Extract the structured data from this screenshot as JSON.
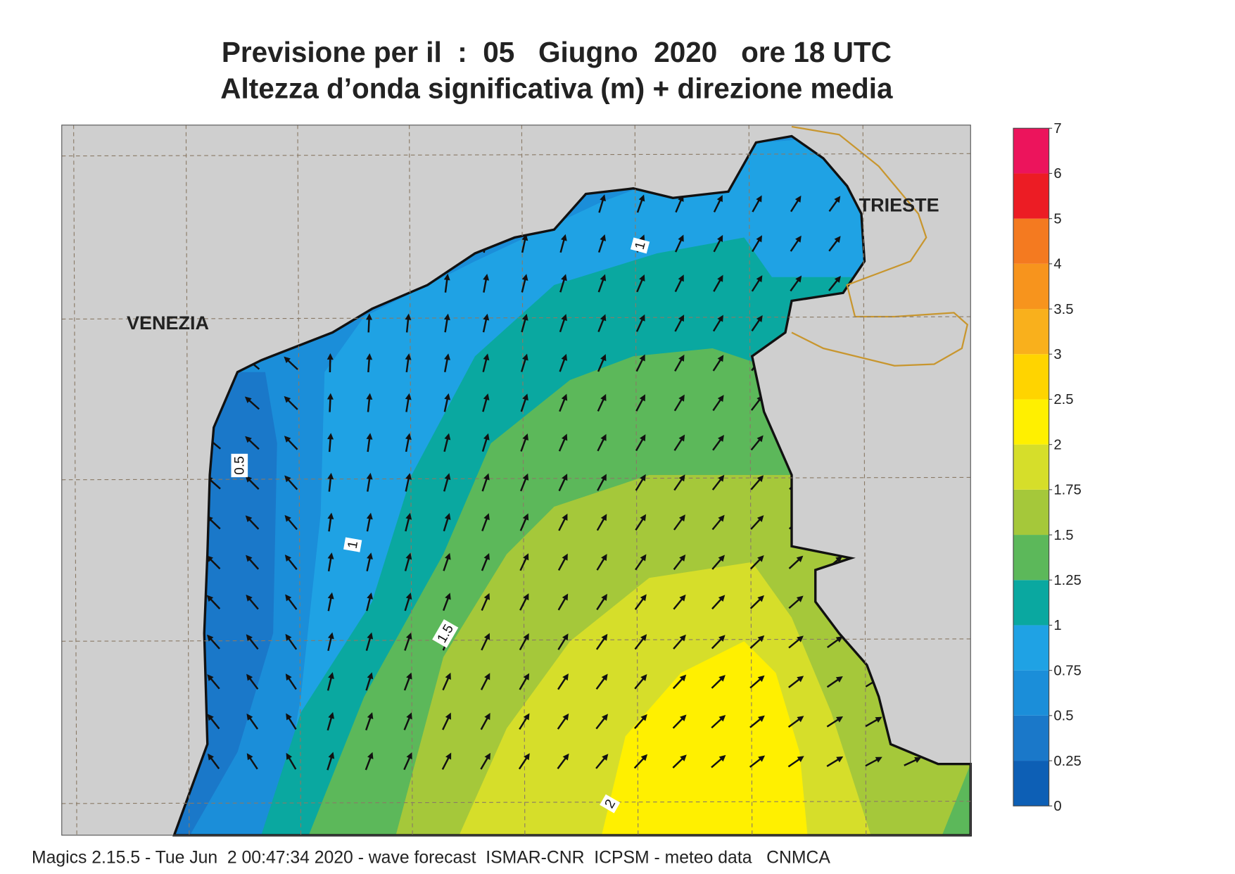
{
  "header": {
    "title": "Previsione per il  :  05   Giugno  2020   ore 18 UTC",
    "subtitle": "Altezza d’onda significativa (m) + direzione media"
  },
  "map": {
    "places": [
      "VENEZIA",
      "TRIESTE"
    ],
    "contour_labels": [
      "0.5",
      "1",
      "1.5",
      "1",
      "2"
    ]
  },
  "legend": {
    "levels": [
      0,
      0.25,
      0.5,
      0.75,
      1,
      1.25,
      1.5,
      1.75,
      2,
      2.5,
      3,
      3.5,
      4,
      5,
      6,
      7
    ],
    "colors": [
      "#0d5fb5",
      "#1a78c9",
      "#1b8ed9",
      "#1fa2e4",
      "#0aa8a0",
      "#5cb85a",
      "#a5c83a",
      "#d6de2a",
      "#fff000",
      "#ffd400",
      "#f9b01c",
      "#f7941d",
      "#f47a20",
      "#ec1c24",
      "#ec145c"
    ]
  },
  "footer": "Magics 2.15.5 - Tue Jun  2 00:47:34 2020 - wave forecast  ISMAR-CNR  ICPSM - meteo data   CNMCA"
}
